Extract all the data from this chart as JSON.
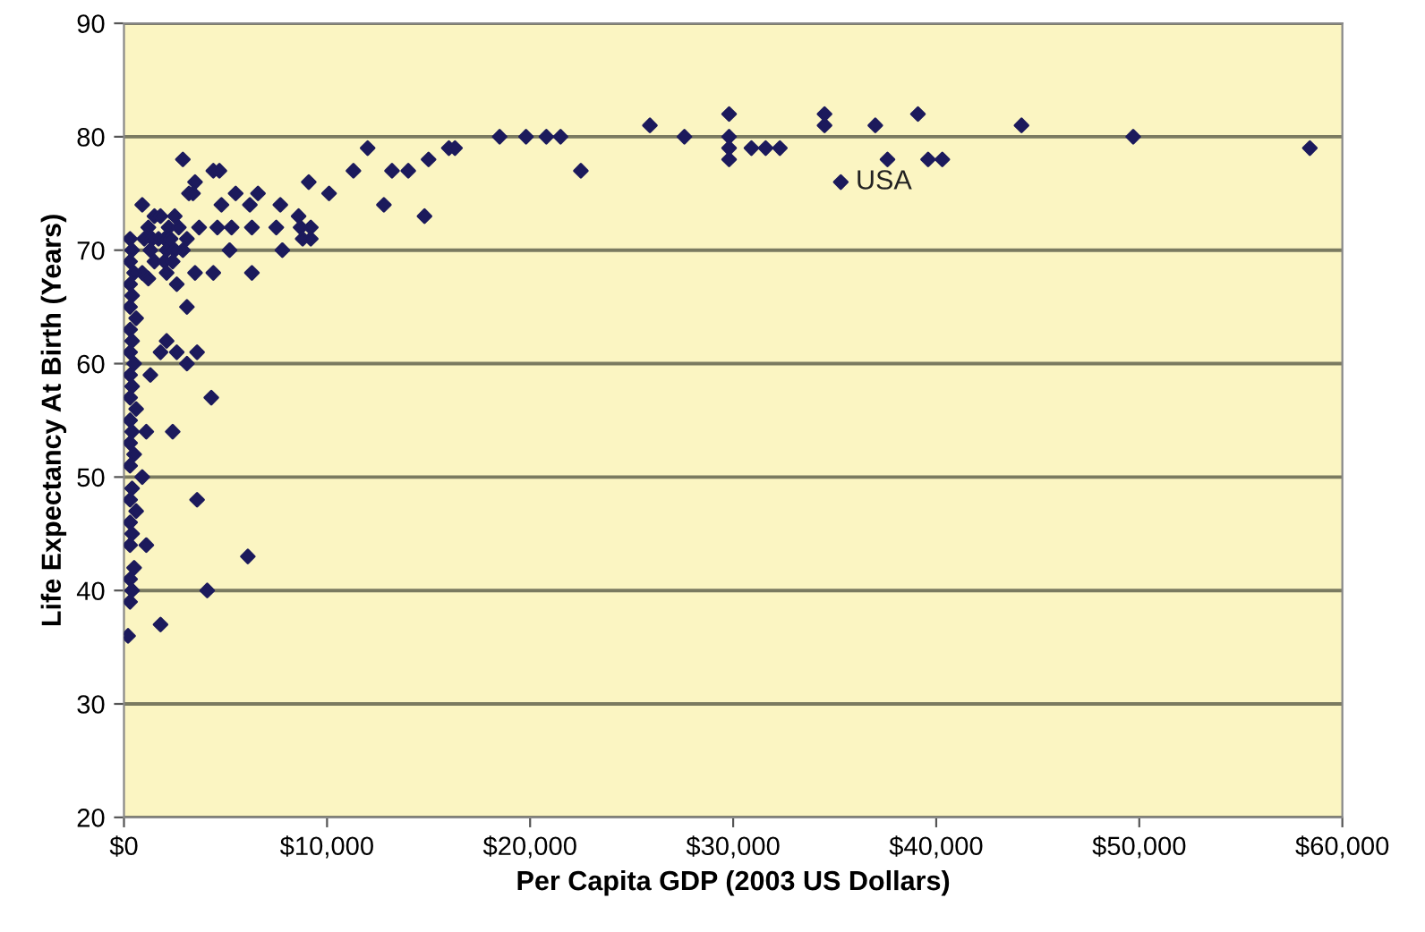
{
  "chart_data": {
    "type": "scatter",
    "xlabel": "Per Capita GDP (2003 US Dollars)",
    "ylabel": "Life Expectancy At Birth (Years)",
    "xlim": [
      0,
      60000
    ],
    "ylim": [
      20,
      90
    ],
    "xticks": [
      {
        "value": 0,
        "label": "$0"
      },
      {
        "value": 10000,
        "label": "$10,000"
      },
      {
        "value": 20000,
        "label": "$20,000"
      },
      {
        "value": 30000,
        "label": "$30,000"
      },
      {
        "value": 40000,
        "label": "$40,000"
      },
      {
        "value": 50000,
        "label": "$50,000"
      },
      {
        "value": 60000,
        "label": "$60,000"
      }
    ],
    "yticks": [
      20,
      30,
      40,
      50,
      60,
      70,
      80,
      90
    ],
    "grid": "y",
    "marker": "diamond",
    "annotations": [
      {
        "text": "USA",
        "x": 35300,
        "y": 76
      }
    ],
    "series": [
      {
        "color": "#1c1a5c",
        "x": [
          58400,
          49700,
          44200,
          39100,
          37000,
          37600,
          39600,
          40300,
          25900,
          27600,
          18500,
          19800,
          20800,
          21500,
          22500,
          29800,
          29800,
          29800,
          29800,
          30900,
          31600,
          32300,
          34500,
          34500,
          35300,
          12000,
          12800,
          13200,
          14000,
          14800,
          15000,
          16000,
          16300,
          2900,
          4400,
          4700,
          3500,
          3200,
          3400,
          11300,
          9100,
          10100,
          900,
          4800,
          6200,
          6600,
          5500,
          7700,
          8600,
          3700,
          4600,
          5300,
          6300,
          7500,
          8700,
          9200,
          8800,
          9200,
          5200,
          7800,
          2100,
          2600,
          3500,
          4400,
          6300,
          900,
          1200,
          3100,
          2100,
          2600,
          1800,
          3600,
          3100,
          1300,
          4300,
          2400,
          1100,
          900,
          3600,
          1100,
          6100,
          4100,
          1800,
          200,
          1000,
          1200,
          1400,
          1500,
          1700,
          1800,
          2000,
          2100,
          2200,
          2300,
          2500,
          2700,
          2900,
          3100,
          1300,
          2500,
          1500,
          2000,
          2400,
          300,
          400,
          300,
          500,
          300,
          400,
          300,
          600,
          300,
          400,
          300,
          500,
          300,
          400,
          300,
          600,
          300,
          400,
          300,
          500,
          300,
          400,
          300,
          600,
          300,
          400,
          300,
          500,
          300,
          400,
          300
        ],
        "values": [
          79,
          80,
          81,
          82,
          81,
          78,
          78,
          78,
          81,
          80,
          80,
          80,
          80,
          80,
          77,
          82,
          80,
          79,
          78,
          79,
          79,
          79,
          82,
          81,
          76,
          79,
          74,
          77,
          77,
          73,
          78,
          79,
          79,
          78,
          77,
          77,
          76,
          75,
          75,
          77,
          76,
          75,
          74,
          74,
          74,
          75,
          75,
          74,
          73,
          72,
          72,
          72,
          72,
          72,
          72,
          72,
          71,
          71,
          70,
          70,
          68,
          67,
          68,
          68,
          68,
          68,
          67.5,
          65,
          62,
          61,
          61,
          61,
          60,
          59,
          57,
          54,
          54,
          50,
          48,
          44,
          43,
          40,
          37,
          36,
          71,
          72,
          71,
          73,
          71,
          73,
          71,
          70,
          72,
          71,
          73,
          72,
          70,
          71,
          70,
          70,
          69,
          69,
          69,
          71,
          70,
          69,
          68,
          67,
          66,
          65,
          64,
          63,
          62,
          61,
          60,
          59,
          58,
          57,
          56,
          55,
          54,
          53,
          52,
          51,
          49,
          48,
          47,
          46,
          45,
          44,
          42,
          41,
          40,
          39
        ]
      }
    ]
  }
}
